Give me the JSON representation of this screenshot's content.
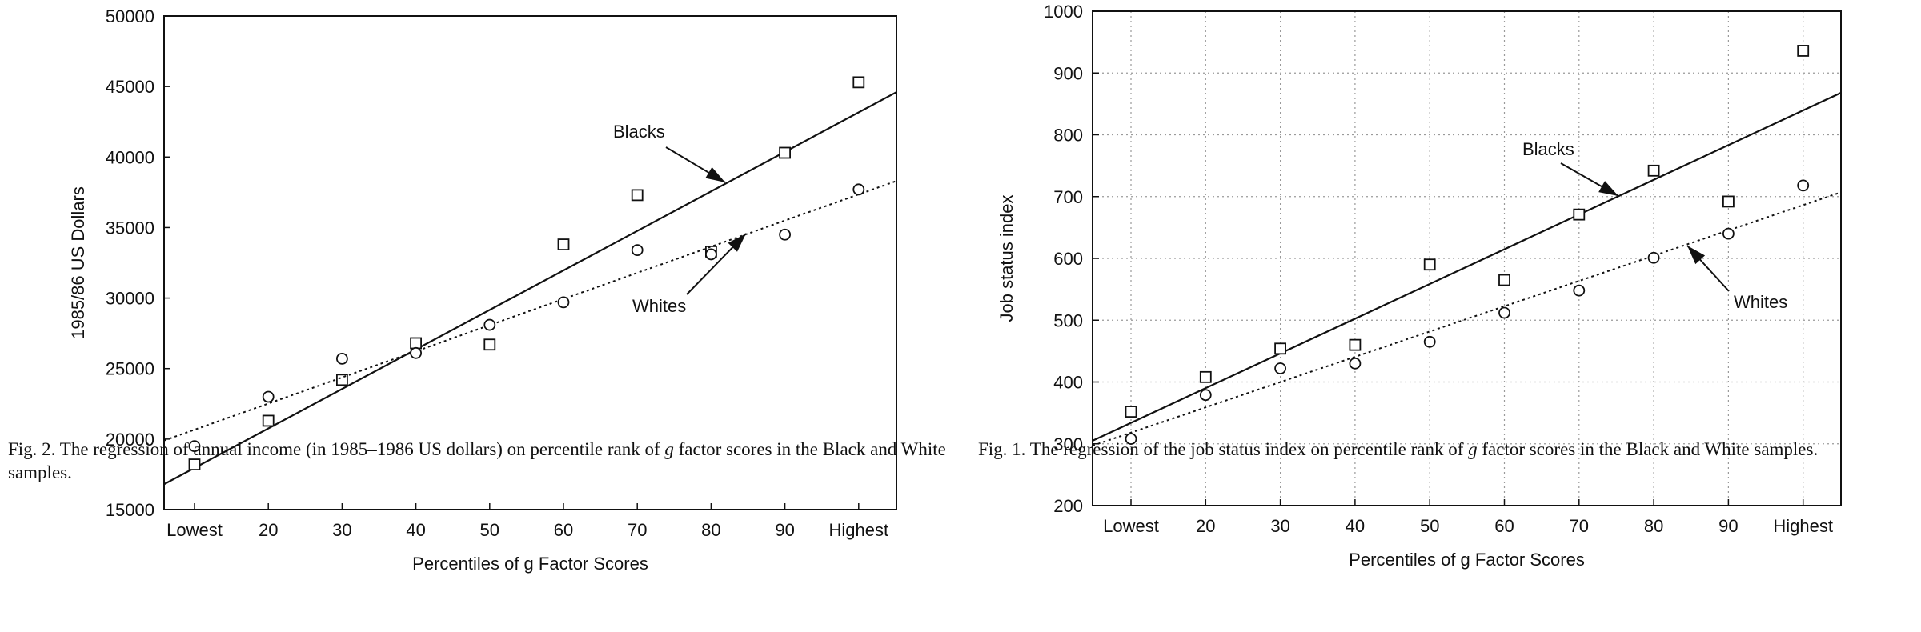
{
  "chart_data": [
    {
      "type": "scatter",
      "title": "",
      "xlabel": "Percentiles of g Factor Scores",
      "ylabel": "1985/86 US Dollars",
      "categories": [
        "Lowest",
        "20",
        "30",
        "40",
        "50",
        "60",
        "70",
        "80",
        "90",
        "Highest"
      ],
      "ylim": [
        15000,
        50000
      ],
      "yticks": [
        "15000",
        "20000",
        "25000",
        "30000",
        "35000",
        "40000",
        "45000",
        "50000"
      ],
      "grid": false,
      "series": [
        {
          "name": "Blacks",
          "marker": "square",
          "values": [
            18200,
            21300,
            24200,
            26800,
            26700,
            33800,
            37300,
            33300,
            40300,
            45300
          ],
          "fit": {
            "style": "solid",
            "start": 16800,
            "end": 44600
          }
        },
        {
          "name": "Whites",
          "marker": "circle",
          "values": [
            19500,
            23000,
            25700,
            26100,
            28100,
            29700,
            33400,
            33100,
            34500,
            37700
          ],
          "fit": {
            "style": "dotted",
            "start": 19900,
            "end": 38300
          }
        }
      ],
      "annotations": [
        {
          "text": "Blacks",
          "points_to": "Blacks"
        },
        {
          "text": "Whites",
          "points_to": "Whites"
        }
      ],
      "caption_parts": [
        "Fig. 2. The regression of annual income (in 1985–1986 US dollars) on percentile rank of ",
        "g",
        " factor scores in the Black and White samples."
      ]
    },
    {
      "type": "scatter",
      "title": "",
      "xlabel": "Percentiles of g Factor Scores",
      "ylabel": "Job status index",
      "categories": [
        "Lowest",
        "20",
        "30",
        "40",
        "50",
        "60",
        "70",
        "80",
        "90",
        "Highest"
      ],
      "ylim": [
        200,
        1000
      ],
      "yticks": [
        "200",
        "300",
        "400",
        "500",
        "600",
        "700",
        "800",
        "900",
        "1000"
      ],
      "grid": true,
      "series": [
        {
          "name": "Blacks",
          "marker": "square",
          "values": [
            352,
            408,
            454,
            460,
            590,
            565,
            671,
            742,
            692,
            936
          ],
          "fit": {
            "style": "solid",
            "start": 305,
            "end": 868
          }
        },
        {
          "name": "Whites",
          "marker": "circle",
          "values": [
            308,
            379,
            422,
            430,
            465,
            512,
            548,
            601,
            640,
            718
          ],
          "fit": {
            "style": "dotted",
            "start": 297,
            "end": 707
          }
        }
      ],
      "annotations": [
        {
          "text": "Blacks",
          "points_to": "Blacks"
        },
        {
          "text": "Whites",
          "points_to": "Whites"
        }
      ],
      "caption_parts": [
        "Fig. 1. The regression of the job status index on percentile rank of ",
        "g",
        " factor scores in the Black and White samples."
      ]
    }
  ]
}
